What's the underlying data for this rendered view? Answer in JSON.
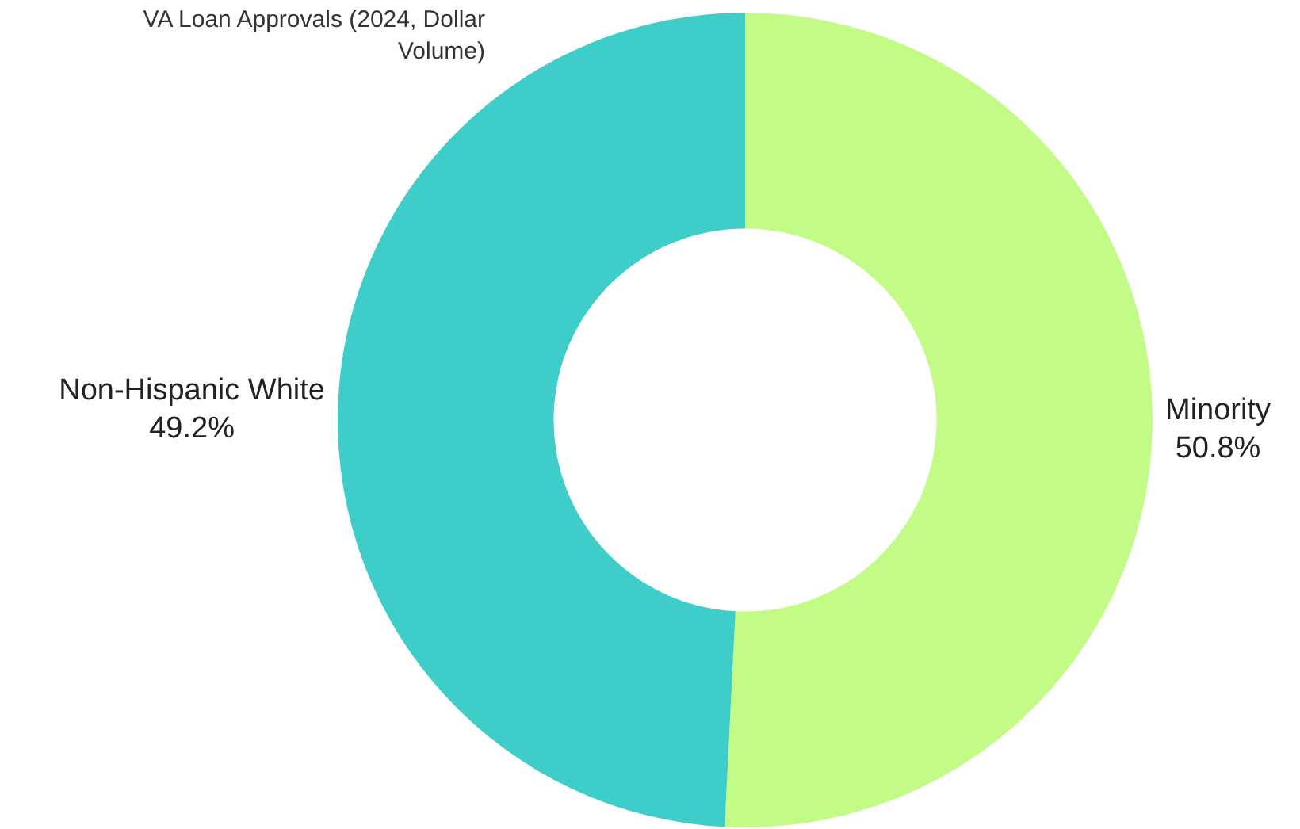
{
  "chart_data": {
    "type": "donut",
    "title": "VA Loan Approvals (2024, Dollar Volume)",
    "categories": [
      "Minority",
      "Non-Hispanic White"
    ],
    "values": [
      50.8,
      49.2
    ],
    "colors": [
      "#c3fb87",
      "#3ecdc8"
    ],
    "value_labels": [
      "50.8%",
      "49.2%"
    ],
    "legend": false
  }
}
